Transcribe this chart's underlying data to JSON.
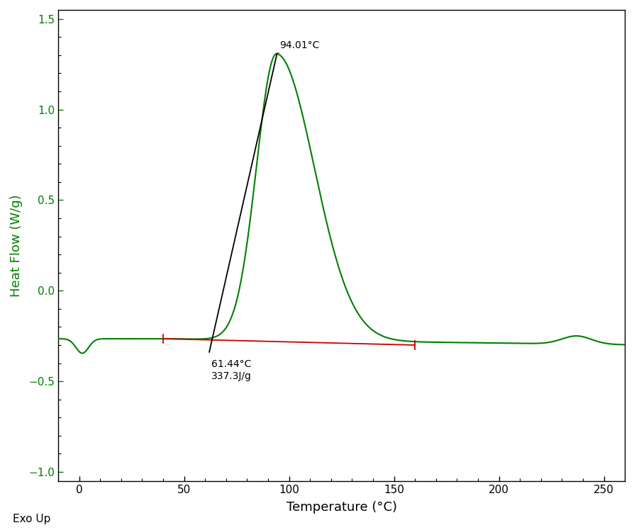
{
  "xlabel": "Temperature (°C)",
  "ylabel": "Heat Flow (W/g)",
  "exo_label": "Exo Up",
  "peak_label": "94.01°C",
  "onset_label": "61.44°C\n337.3J/g",
  "peak_temp": 94.01,
  "onset_temp": 61.44,
  "baseline_start_temp": 40.0,
  "baseline_end_temp": 160.0,
  "baseline_start_y": -0.265,
  "baseline_end_y": -0.3,
  "xlim": [
    -10,
    260
  ],
  "ylim": [
    -1.05,
    1.55
  ],
  "xticks": [
    0,
    50,
    100,
    150,
    200,
    250
  ],
  "yticks": [
    -1.0,
    -0.5,
    0.0,
    0.5,
    1.0,
    1.5
  ],
  "main_color": "#008000",
  "baseline_color": "#cc0000",
  "tangent_color": "#000000",
  "bg_color": "#ffffff",
  "axis_color": "#000000",
  "label_color": "#008000",
  "tick_color": "#000000"
}
